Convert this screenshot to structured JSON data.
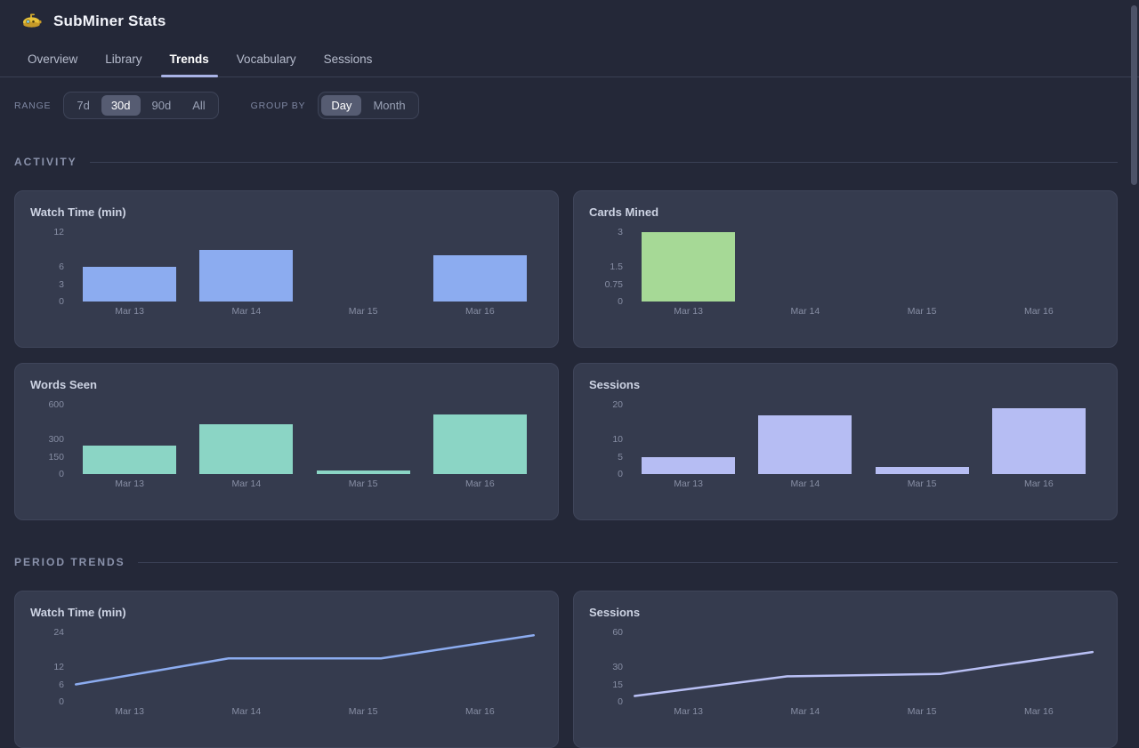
{
  "app": {
    "title": "SubMiner Stats"
  },
  "tabs": [
    {
      "label": "Overview",
      "active": false
    },
    {
      "label": "Library",
      "active": false
    },
    {
      "label": "Trends",
      "active": true
    },
    {
      "label": "Vocabulary",
      "active": false
    },
    {
      "label": "Sessions",
      "active": false
    }
  ],
  "controls": {
    "range_label": "RANGE",
    "range_options": [
      {
        "label": "7d",
        "selected": false
      },
      {
        "label": "30d",
        "selected": true
      },
      {
        "label": "90d",
        "selected": false
      },
      {
        "label": "All",
        "selected": false
      }
    ],
    "group_by_label": "GROUP BY",
    "group_by_options": [
      {
        "label": "Day",
        "selected": true
      },
      {
        "label": "Month",
        "selected": false
      }
    ]
  },
  "sections": [
    {
      "title": "ACTIVITY"
    },
    {
      "title": "PERIOD TRENDS"
    }
  ],
  "chart_data": [
    {
      "section": "ACTIVITY",
      "type": "bar",
      "title": "Watch Time (min)",
      "categories": [
        "Mar 13",
        "Mar 14",
        "Mar 15",
        "Mar 16"
      ],
      "values": [
        6,
        9,
        0,
        8
      ],
      "yticks": [
        12,
        6,
        3,
        0
      ],
      "ylim": [
        0,
        12
      ],
      "color": "#8cacf0",
      "grid": false,
      "legend": "none"
    },
    {
      "section": "ACTIVITY",
      "type": "bar",
      "title": "Cards Mined",
      "categories": [
        "Mar 13",
        "Mar 14",
        "Mar 15",
        "Mar 16"
      ],
      "values": [
        3,
        0,
        0,
        0
      ],
      "yticks": [
        3,
        1.5,
        0.75,
        0
      ],
      "ylim": [
        0,
        3
      ],
      "color": "#a6d996",
      "grid": false,
      "legend": "none"
    },
    {
      "section": "ACTIVITY",
      "type": "bar",
      "title": "Words Seen",
      "categories": [
        "Mar 13",
        "Mar 14",
        "Mar 15",
        "Mar 16"
      ],
      "values": [
        250,
        430,
        28,
        515
      ],
      "yticks": [
        600,
        300,
        150,
        0
      ],
      "ylim": [
        0,
        600
      ],
      "color": "#8bd5c5",
      "grid": false,
      "legend": "none"
    },
    {
      "section": "ACTIVITY",
      "type": "bar",
      "title": "Sessions",
      "categories": [
        "Mar 13",
        "Mar 14",
        "Mar 15",
        "Mar 16"
      ],
      "values": [
        5,
        17,
        2,
        19
      ],
      "yticks": [
        20,
        10,
        5,
        0
      ],
      "ylim": [
        0,
        20
      ],
      "color": "#b6bdf3",
      "grid": false,
      "legend": "none"
    },
    {
      "section": "PERIOD TRENDS",
      "type": "line",
      "title": "Watch Time (min)",
      "categories": [
        "Mar 13",
        "Mar 14",
        "Mar 15",
        "Mar 16"
      ],
      "values": [
        6,
        15,
        15,
        23
      ],
      "yticks": [
        24,
        12,
        6,
        0
      ],
      "ylim": [
        0,
        24
      ],
      "color": "#8cacf0",
      "grid": false,
      "legend": "none"
    },
    {
      "section": "PERIOD TRENDS",
      "type": "line",
      "title": "Sessions",
      "categories": [
        "Mar 13",
        "Mar 14",
        "Mar 15",
        "Mar 16"
      ],
      "values": [
        5,
        22,
        24,
        43
      ],
      "yticks": [
        60,
        30,
        15,
        0
      ],
      "ylim": [
        0,
        60
      ],
      "color": "#b9c0f5",
      "grid": false,
      "legend": "none"
    }
  ]
}
